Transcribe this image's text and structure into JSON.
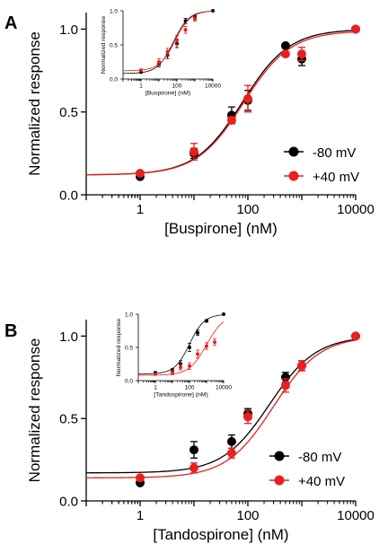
{
  "colors": {
    "series_black": "#000000",
    "series_red": "#e8201f",
    "axis": "#000000"
  },
  "chart_data": [
    {
      "panel_label": "A",
      "type": "scatter",
      "xscale": "log",
      "xlabel": "[Buspirone] (nM)",
      "ylabel": "Normalized response",
      "xlim": [
        0.1,
        10000
      ],
      "ylim": [
        0,
        1.1
      ],
      "xticks": [
        1,
        100,
        10000
      ],
      "xticklabels": [
        "1",
        "100",
        "10000"
      ],
      "yticks": [
        0,
        0.5,
        1.0
      ],
      "yticklabels": [
        "0.0",
        "0.5",
        "1.0"
      ],
      "legend_position": "right",
      "series": [
        {
          "name": "-80 mV",
          "color": "#000000",
          "points": [
            {
              "x": 1,
              "y": 0.11,
              "err": 0
            },
            {
              "x": 10,
              "y": 0.25,
              "err": 0.03
            },
            {
              "x": 50,
              "y": 0.48,
              "err": 0.05
            },
            {
              "x": 100,
              "y": 0.57,
              "err": 0.06
            },
            {
              "x": 500,
              "y": 0.9,
              "err": 0.01
            },
            {
              "x": 1000,
              "y": 0.82,
              "err": 0.04
            },
            {
              "x": 10000,
              "y": 1.0,
              "err": 0
            }
          ],
          "fit": {
            "bottom": 0.12,
            "top": 1.0,
            "log_ec50": 1.9,
            "hill": 1.0
          }
        },
        {
          "name": "+40 mV",
          "color": "#e8201f",
          "points": [
            {
              "x": 1,
              "y": 0.13,
              "err": 0
            },
            {
              "x": 10,
              "y": 0.26,
              "err": 0.05
            },
            {
              "x": 50,
              "y": 0.45,
              "err": 0.02
            },
            {
              "x": 100,
              "y": 0.58,
              "err": 0.08
            },
            {
              "x": 500,
              "y": 0.85,
              "err": 0.01
            },
            {
              "x": 1000,
              "y": 0.85,
              "err": 0.04
            },
            {
              "x": 10000,
              "y": 1.0,
              "err": 0
            }
          ],
          "fit": {
            "bottom": 0.12,
            "top": 0.99,
            "log_ec50": 1.92,
            "hill": 1.0
          }
        }
      ],
      "inset": {
        "xlabel": "[Buspirone] (nM)",
        "ylabel": "Normalized response",
        "xlim": [
          0.1,
          10000
        ],
        "ylim": [
          0,
          1.0
        ],
        "xticks": [
          1,
          100,
          10000
        ],
        "xticklabels": [
          "1",
          "100",
          "10000"
        ],
        "yticks": [
          0,
          0.5,
          1.0
        ],
        "yticklabels": [
          "0.0",
          "0.5",
          "1.0"
        ],
        "series": [
          {
            "name": "-80 mV",
            "color": "#000000",
            "points": [
              {
                "x": 1,
                "y": 0.1,
                "err": 0
              },
              {
                "x": 10,
                "y": 0.22,
                "err": 0.04
              },
              {
                "x": 30,
                "y": 0.35,
                "err": 0.05
              },
              {
                "x": 100,
                "y": 0.52,
                "err": 0.06
              },
              {
                "x": 300,
                "y": 0.85,
                "err": 0.04
              },
              {
                "x": 1000,
                "y": 0.91,
                "err": 0.02
              },
              {
                "x": 10000,
                "y": 1.0,
                "err": 0
              }
            ],
            "fit": {
              "bottom": 0.08,
              "top": 1.0,
              "log_ec50": 1.8,
              "hill": 1.0
            }
          },
          {
            "name": "+40 mV",
            "color": "#e8201f",
            "points": [
              {
                "x": 1,
                "y": 0.13,
                "err": 0
              },
              {
                "x": 10,
                "y": 0.25,
                "err": 0.05
              },
              {
                "x": 30,
                "y": 0.4,
                "err": 0.05
              },
              {
                "x": 100,
                "y": 0.57,
                "err": 0.07
              },
              {
                "x": 300,
                "y": 0.72,
                "err": 0.05
              },
              {
                "x": 1000,
                "y": 0.88,
                "err": 0.03
              }
            ],
            "fit": {
              "bottom": 0.12,
              "top": 1.0,
              "log_ec50": 1.9,
              "hill": 1.0
            }
          }
        ]
      }
    },
    {
      "panel_label": "B",
      "type": "scatter",
      "xscale": "log",
      "xlabel": "[Tandospirone] (nM)",
      "ylabel": "Normalized response",
      "xlim": [
        0.1,
        10000
      ],
      "ylim": [
        0,
        1.1
      ],
      "xticks": [
        1,
        100,
        10000
      ],
      "xticklabels": [
        "1",
        "100",
        "10000"
      ],
      "yticks": [
        0,
        0.5,
        1.0
      ],
      "yticklabels": [
        "0.0",
        "0.5",
        "1.0"
      ],
      "legend_position": "right",
      "series": [
        {
          "name": "-80 mV",
          "color": "#000000",
          "points": [
            {
              "x": 1,
              "y": 0.11,
              "err": 0
            },
            {
              "x": 10,
              "y": 0.31,
              "err": 0.05
            },
            {
              "x": 50,
              "y": 0.36,
              "err": 0.04
            },
            {
              "x": 100,
              "y": 0.53,
              "err": 0.03
            },
            {
              "x": 500,
              "y": 0.75,
              "err": 0.03
            },
            {
              "x": 1000,
              "y": 0.82,
              "err": 0.03
            },
            {
              "x": 10000,
              "y": 1.0,
              "err": 0
            }
          ],
          "fit": {
            "bottom": 0.17,
            "top": 1.0,
            "log_ec50": 2.4,
            "hill": 1.0
          }
        },
        {
          "name": "+40 mV",
          "color": "#e8201f",
          "points": [
            {
              "x": 1,
              "y": 0.14,
              "err": 0
            },
            {
              "x": 10,
              "y": 0.2,
              "err": 0.03
            },
            {
              "x": 50,
              "y": 0.29,
              "err": 0.03
            },
            {
              "x": 100,
              "y": 0.51,
              "err": 0.04
            },
            {
              "x": 500,
              "y": 0.7,
              "err": 0.04
            },
            {
              "x": 1000,
              "y": 0.82,
              "err": 0.03
            },
            {
              "x": 10000,
              "y": 1.0,
              "err": 0
            }
          ],
          "fit": {
            "bottom": 0.14,
            "top": 1.0,
            "log_ec50": 2.47,
            "hill": 1.0
          }
        }
      ],
      "inset": {
        "xlabel": "[Tandospirone] (nM)",
        "ylabel": "Normalized response",
        "xlim": [
          0.1,
          10000
        ],
        "ylim": [
          0,
          1.0
        ],
        "xticks": [
          1,
          100,
          10000
        ],
        "xticklabels": [
          "1",
          "100",
          "10000"
        ],
        "yticks": [
          0,
          0.5,
          1.0
        ],
        "yticklabels": [
          "0.0",
          "0.5",
          "1.0"
        ],
        "series": [
          {
            "name": "-80 mV",
            "color": "#000000",
            "points": [
              {
                "x": 1,
                "y": 0.12,
                "err": 0
              },
              {
                "x": 10,
                "y": 0.15,
                "err": 0.03
              },
              {
                "x": 30,
                "y": 0.25,
                "err": 0.05
              },
              {
                "x": 100,
                "y": 0.5,
                "err": 0.06
              },
              {
                "x": 300,
                "y": 0.72,
                "err": 0.04
              },
              {
                "x": 1000,
                "y": 0.9,
                "err": 0.02
              },
              {
                "x": 10000,
                "y": 1.0,
                "err": 0
              }
            ],
            "fit": {
              "bottom": 0.1,
              "top": 1.0,
              "log_ec50": 2.0,
              "hill": 1.0
            }
          },
          {
            "name": "+40 mV",
            "color": "#e8201f",
            "points": [
              {
                "x": 1,
                "y": 0.1,
                "err": 0
              },
              {
                "x": 10,
                "y": 0.12,
                "err": 0.03
              },
              {
                "x": 30,
                "y": 0.2,
                "err": 0.04
              },
              {
                "x": 100,
                "y": 0.22,
                "err": 0.05
              },
              {
                "x": 300,
                "y": 0.4,
                "err": 0.06
              },
              {
                "x": 1000,
                "y": 0.52,
                "err": 0.05
              },
              {
                "x": 3000,
                "y": 0.58,
                "err": 0.05
              }
            ],
            "fit": {
              "bottom": 0.08,
              "top": 1.0,
              "log_ec50": 3.0,
              "hill": 0.85
            }
          }
        ]
      }
    }
  ]
}
